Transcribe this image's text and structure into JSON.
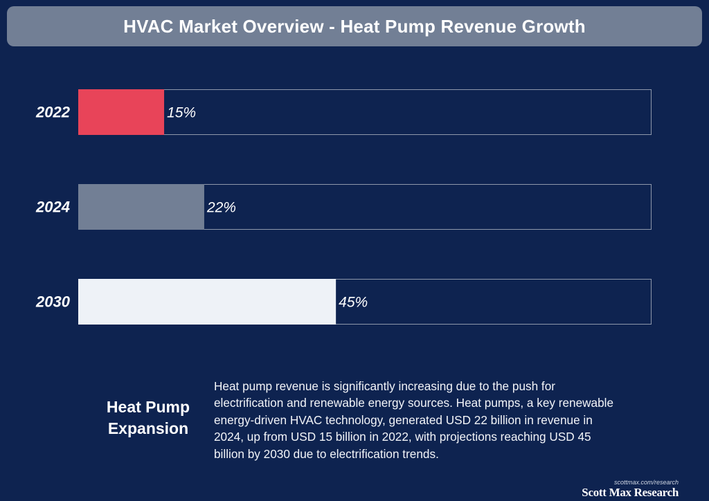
{
  "header": {
    "title": "HVAC Market Overview - Heat Pump Revenue Growth"
  },
  "chart_data": {
    "type": "bar",
    "orientation": "horizontal",
    "title": "HVAC Market Overview - Heat Pump Revenue Growth",
    "categories": [
      "2022",
      "2024",
      "2030"
    ],
    "values": [
      15,
      22,
      45
    ],
    "value_labels": [
      "15%",
      "22%",
      "45%"
    ],
    "xlim": [
      0,
      100
    ],
    "colors": [
      "#e84459",
      "#727f95",
      "#eef2f7"
    ],
    "track_border_color": "#8e98ab",
    "grid": false
  },
  "summary": {
    "heading_line1": "Heat Pump",
    "heading_line2": "Expansion",
    "body": "Heat pump revenue is significantly increasing due to the push for electrification and renewable energy sources. Heat pumps, a key renewable energy-driven HVAC technology, generated USD 22 billion in revenue in 2024, up from USD 15 billion in 2022, with projections reaching USD 45 billion by 2030 due to electrification trends."
  },
  "footer": {
    "url": "scottmax.com/research",
    "brand": "Scott Max Research"
  }
}
